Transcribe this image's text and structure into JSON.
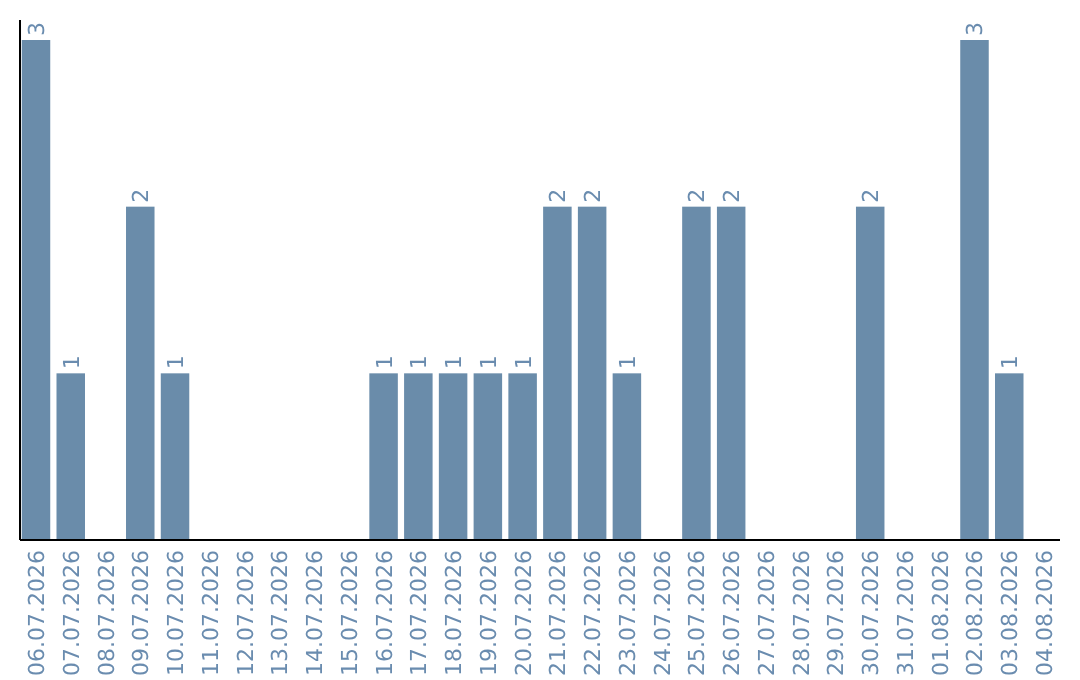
{
  "chart_data": {
    "type": "bar",
    "categories": [
      "06.07.2026",
      "07.07.2026",
      "08.07.2026",
      "09.07.2026",
      "10.07.2026",
      "11.07.2026",
      "12.07.2026",
      "13.07.2026",
      "14.07.2026",
      "15.07.2026",
      "16.07.2026",
      "17.07.2026",
      "18.07.2026",
      "19.07.2026",
      "20.07.2026",
      "21.07.2026",
      "22.07.2026",
      "23.07.2026",
      "24.07.2026",
      "25.07.2026",
      "26.07.2026",
      "27.07.2026",
      "28.07.2026",
      "29.07.2026",
      "30.07.2026",
      "31.07.2026",
      "01.08.2026",
      "02.08.2026",
      "03.08.2026",
      "04.08.2026"
    ],
    "values": [
      3,
      1,
      0,
      2,
      1,
      0,
      0,
      0,
      0,
      0,
      1,
      1,
      1,
      1,
      1,
      2,
      2,
      1,
      0,
      2,
      2,
      0,
      0,
      0,
      2,
      0,
      0,
      3,
      1,
      0
    ],
    "value_labels": [
      "3",
      "1",
      null,
      "2",
      "1",
      null,
      null,
      null,
      null,
      null,
      "1",
      "1",
      "1",
      "1",
      "1",
      "2",
      "2",
      "1",
      null,
      "2",
      "2",
      null,
      null,
      null,
      "2",
      null,
      null,
      "3",
      "1",
      null
    ],
    "color": "#6a8caa"
  }
}
